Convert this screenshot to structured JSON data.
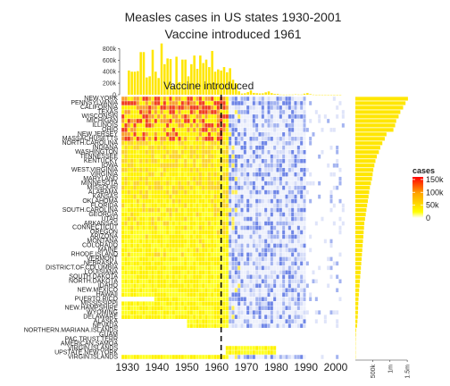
{
  "chart_data": {
    "type": "heatmap",
    "title": "Measles cases in US states 1930-2001",
    "subtitle": "Vaccine introduced 1961",
    "annotation": "Vaccine introduced",
    "vaccine_year": 1961,
    "x_ticks": [
      "1930",
      "1940",
      "1950",
      "1960",
      "1970",
      "1980",
      "1990",
      "2000"
    ],
    "year_range": [
      1928,
      2003
    ],
    "states": [
      "NEW.YORK",
      "PENNSYLVANIA",
      "CALIFORNIA",
      "TEXAS",
      "WISCONSIN",
      "MICHIGAN",
      "ILLINOIS",
      "OHIO",
      "NEW.JERSEY",
      "MASSACHUSETTS",
      "NORTH.CAROLINA",
      "INDIANA",
      "WASHINGTON",
      "TENNESSEE",
      "KENTUCKY",
      "IOWA",
      "WEST.VIRGINIA",
      "VIRGINIA",
      "MARYLAND",
      "MINNESOTA",
      "MISSOURI",
      "ALABAMA",
      "KANSAS",
      "OKLAHOMA",
      "FLORIDA",
      "SOUTH.CAROLINA",
      "GEORGIA",
      "UTAH",
      "ARKANSAS",
      "CONNECTICUT",
      "OREGON",
      "ARIZONA",
      "MONTANA",
      "COLORADO",
      "MAINE",
      "RHODE.ISLAND",
      "VERMONT",
      "NEBRASKA",
      "DISTRICT.OF.COLUMBIA",
      "LOUISIANA",
      "SOUTH.DAKOTA",
      "NORTH.DAKOTA",
      "IDAHO",
      "NEW.MEXICO",
      "HAWAII",
      "PUERTO.RICO",
      "MISSISSIPPI",
      "NEW.HAMPSHIRE",
      "WYOMING",
      "DELAWARE",
      "ALASKA",
      "NEVADA",
      "NORTHERN.MARIANA.ISLANDS",
      "GUAM",
      "PAC.TRUST.TERR",
      "AMERICAN.SAMOA",
      "VIRGIN.ISLANDS",
      "UPSTATE.NEW.YORK",
      "VIRGIN.ISLANDS"
    ],
    "yearly_totals": [
      [
        1930,
        420000
      ],
      [
        1931,
        400000
      ],
      [
        1932,
        400000
      ],
      [
        1933,
        410000
      ],
      [
        1934,
        740000
      ],
      [
        1935,
        740000
      ],
      [
        1936,
        300000
      ],
      [
        1937,
        320000
      ],
      [
        1938,
        780000
      ],
      [
        1939,
        400000
      ],
      [
        1940,
        290000
      ],
      [
        1941,
        890000
      ],
      [
        1942,
        530000
      ],
      [
        1943,
        630000
      ],
      [
        1944,
        620000
      ],
      [
        1945,
        150000
      ],
      [
        1946,
        660000
      ],
      [
        1947,
        220000
      ],
      [
        1948,
        610000
      ],
      [
        1949,
        610000
      ],
      [
        1950,
        320000
      ],
      [
        1951,
        530000
      ],
      [
        1952,
        680000
      ],
      [
        1953,
        450000
      ],
      [
        1954,
        680000
      ],
      [
        1955,
        550000
      ],
      [
        1956,
        610000
      ],
      [
        1957,
        480000
      ],
      [
        1958,
        760000
      ],
      [
        1959,
        400000
      ],
      [
        1960,
        440000
      ],
      [
        1961,
        420000
      ],
      [
        1962,
        480000
      ],
      [
        1963,
        390000
      ],
      [
        1964,
        460000
      ],
      [
        1965,
        260000
      ],
      [
        1966,
        200000
      ],
      [
        1967,
        60000
      ],
      [
        1968,
        20000
      ],
      [
        1969,
        25000
      ],
      [
        1970,
        45000
      ],
      [
        1971,
        75000
      ],
      [
        1972,
        32000
      ],
      [
        1973,
        26000
      ],
      [
        1974,
        22000
      ],
      [
        1975,
        24000
      ],
      [
        1976,
        41000
      ],
      [
        1977,
        57000
      ],
      [
        1978,
        27000
      ],
      [
        1979,
        14000
      ],
      [
        1980,
        13000
      ],
      [
        1981,
        3000
      ],
      [
        1982,
        1700
      ],
      [
        1983,
        1500
      ],
      [
        1984,
        2600
      ],
      [
        1985,
        2800
      ],
      [
        1986,
        6200
      ],
      [
        1987,
        3700
      ],
      [
        1988,
        3400
      ],
      [
        1989,
        18000
      ],
      [
        1990,
        28000
      ],
      [
        1991,
        9600
      ],
      [
        1992,
        2200
      ],
      [
        1993,
        300
      ],
      [
        1994,
        1000
      ],
      [
        1995,
        300
      ],
      [
        1996,
        500
      ],
      [
        1997,
        140
      ],
      [
        1998,
        100
      ],
      [
        1999,
        100
      ],
      [
        2000,
        90
      ],
      [
        2001,
        120
      ]
    ],
    "state_totals": [
      1.52,
      1.45,
      1.38,
      1.3,
      1.25,
      1.18,
      1.15,
      1.1,
      0.9,
      0.85,
      0.78,
      0.72,
      0.68,
      0.62,
      0.58,
      0.55,
      0.52,
      0.5,
      0.48,
      0.45,
      0.42,
      0.4,
      0.38,
      0.36,
      0.34,
      0.32,
      0.3,
      0.28,
      0.26,
      0.25,
      0.24,
      0.23,
      0.22,
      0.21,
      0.2,
      0.19,
      0.18,
      0.17,
      0.16,
      0.15,
      0.14,
      0.13,
      0.12,
      0.11,
      0.1,
      0.09,
      0.085,
      0.08,
      0.075,
      0.07,
      0.06,
      0.05,
      0.02,
      0.015,
      0.01,
      0.008,
      0.006,
      0.005,
      0.004
    ],
    "state_axis_ticks": [
      "500k",
      "1m",
      "1.5m"
    ],
    "yearly_axis_ticks": [
      "0",
      "200k",
      "400k",
      "600k",
      "800k"
    ],
    "legend": {
      "title": "cases",
      "ticks": [
        "150k",
        "100k",
        "50k",
        "0"
      ],
      "colors": [
        "#ffffff",
        "#ffff00",
        "#ffa500",
        "#ff0000"
      ]
    }
  }
}
